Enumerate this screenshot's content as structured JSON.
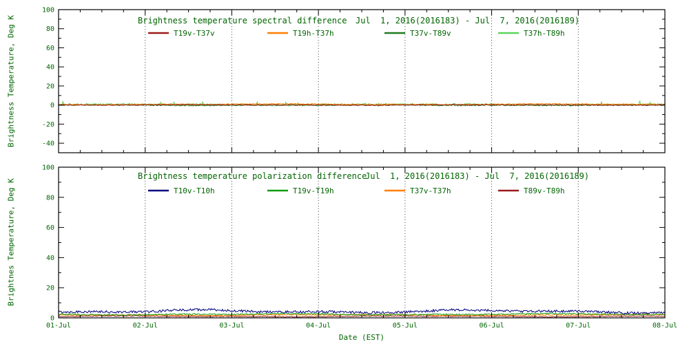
{
  "figure": {
    "xlabel": "Date (EST)",
    "xtick_labels": [
      "01-Jul",
      "02-Jul",
      "03-Jul",
      "04-Jul",
      "05-Jul",
      "06-Jul",
      "07-Jul",
      "08-Jul"
    ],
    "text_color": "#006400",
    "axis_color": "#000000",
    "grid_color": "#444444",
    "background": "#ffffff"
  },
  "chart_data": [
    {
      "type": "line",
      "title": "Brightness temperature spectral difference",
      "date_range": "Jul  1, 2016(2016183) - Jul  7, 2016(2016189)",
      "ylabel": "Brightness Temperature, Deg K",
      "xlabel": "",
      "ylim": [
        -50,
        100
      ],
      "yticks": [
        100,
        80,
        60,
        40,
        20,
        0,
        -20,
        -40
      ],
      "x_days": [
        0,
        7
      ],
      "grid": "vertical-dotted",
      "legend_position": "top-inside",
      "series": [
        {
          "name": "T19v-T37v",
          "color": "#9b1a1a",
          "mean": 0.1,
          "noise": 0.5,
          "slow_amp": 0.2,
          "seed": 11
        },
        {
          "name": "T19h-T37h",
          "color": "#ff7f00",
          "mean": 0.8,
          "noise": 0.55,
          "slow_amp": 0.3,
          "seed": 22
        },
        {
          "name": "T37v-T89v",
          "color": "#1f7a1f",
          "mean": -0.1,
          "noise": 0.6,
          "slow_amp": 0.2,
          "seed": 33
        },
        {
          "name": "T37h-T89h",
          "color": "#5ad45a",
          "mean": 0.4,
          "noise": 1.1,
          "slow_amp": 0.3,
          "seed": 44,
          "spike_prob": 0.03,
          "spike_amp": 3
        }
      ]
    },
    {
      "type": "line",
      "title": "Brightness temperature polarization difference",
      "date_range": "Jul  1, 2016(2016183) - Jul  7, 2016(2016189)",
      "ylabel": "Brightnes Temperature, Deg K",
      "xlabel": "Date (EST)",
      "ylim": [
        0,
        100
      ],
      "yticks": [
        100,
        80,
        60,
        40,
        20,
        0
      ],
      "x_days": [
        0,
        7
      ],
      "grid": "vertical-dotted",
      "legend_position": "top-inside",
      "series": [
        {
          "name": "T10v-T10h",
          "color": "#000080",
          "mean": 4.3,
          "noise": 0.8,
          "slow_amp": 0.7,
          "seed": 55
        },
        {
          "name": "T19v-T19h",
          "color": "#0f9b0f",
          "mean": 2.4,
          "noise": 0.45,
          "slow_amp": 0.3,
          "seed": 66
        },
        {
          "name": "T37v-T37h",
          "color": "#ff7f00",
          "mean": 1.9,
          "noise": 0.4,
          "slow_amp": 0.25,
          "seed": 77
        },
        {
          "name": "T89v-T89h",
          "color": "#9b1a1a",
          "mean": 1.0,
          "noise": 0.3,
          "slow_amp": 0.2,
          "seed": 88
        }
      ]
    }
  ]
}
